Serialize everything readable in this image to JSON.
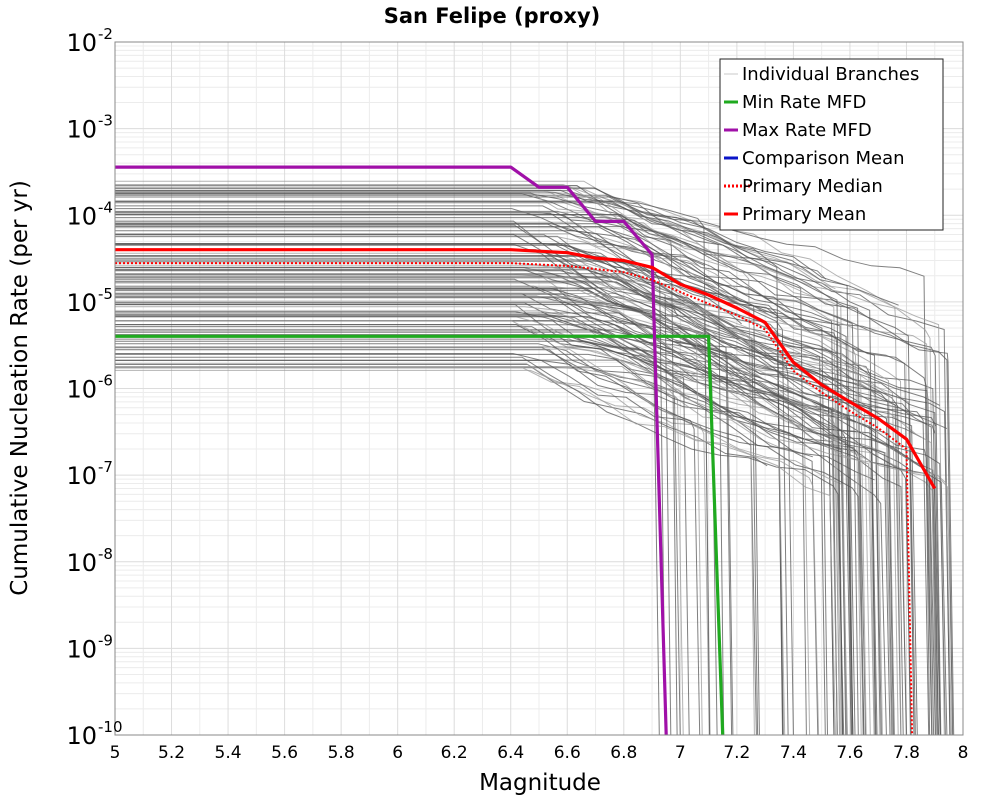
{
  "chart_data": {
    "type": "line",
    "title": "San Felipe (proxy)",
    "xlabel": "Magnitude",
    "ylabel": "Cumulative Nucleation Rate (per yr)",
    "xlim": [
      5,
      8
    ],
    "ylim_log10": [
      -10,
      -2
    ],
    "yscale": "log",
    "grid": true,
    "x_ticks": [
      "5",
      "5.2",
      "5.4",
      "5.6",
      "5.8",
      "6",
      "6.2",
      "6.4",
      "6.6",
      "6.8",
      "7",
      "7.2",
      "7.4",
      "7.6",
      "7.8",
      "8"
    ],
    "y_ticks": [
      {
        "base": "10",
        "exp": "-2"
      },
      {
        "base": "10",
        "exp": "-3"
      },
      {
        "base": "10",
        "exp": "-4"
      },
      {
        "base": "10",
        "exp": "-5"
      },
      {
        "base": "10",
        "exp": "-6"
      },
      {
        "base": "10",
        "exp": "-7"
      },
      {
        "base": "10",
        "exp": "-8"
      },
      {
        "base": "10",
        "exp": "-9"
      },
      {
        "base": "10",
        "exp": "-10"
      }
    ],
    "legend_position": "top-right",
    "legend": [
      {
        "label": "Individual Branches",
        "color": "#c8c8c8",
        "style": "solid"
      },
      {
        "label": "Min Rate MFD",
        "color": "#1faa1f",
        "style": "solid"
      },
      {
        "label": "Max Rate MFD",
        "color": "#a010a8",
        "style": "solid"
      },
      {
        "label": "Comparison Mean",
        "color": "#0a14c8",
        "style": "solid"
      },
      {
        "label": " Primary Median",
        "color": "#ff0000",
        "style": "dotted"
      },
      {
        "label": "Primary Mean",
        "color": "#ff0000",
        "style": "solid"
      }
    ],
    "branch_band": {
      "color": "#4d4d4d",
      "plateau_rate_range": [
        1.5e-06,
        0.00025
      ],
      "plateau_end_magnitude_range": [
        6.4,
        6.8
      ],
      "max_magnitude_range": [
        6.9,
        7.95
      ],
      "approx_count": 140
    },
    "series": [
      {
        "name": "Min Rate MFD",
        "color": "#1faa1f",
        "points": [
          [
            5.0,
            4e-06
          ],
          [
            7.1,
            4e-06
          ],
          [
            7.15,
            1e-10
          ]
        ]
      },
      {
        "name": "Max Rate MFD",
        "color": "#a010a8",
        "points": [
          [
            5.0,
            0.00036
          ],
          [
            6.4,
            0.00036
          ],
          [
            6.5,
            0.00021
          ],
          [
            6.6,
            0.00021
          ],
          [
            6.7,
            8.5e-05
          ],
          [
            6.8,
            8.5e-05
          ],
          [
            6.9,
            3.5e-05
          ],
          [
            6.95,
            1e-10
          ]
        ]
      },
      {
        "name": "Primary Median",
        "color": "#ff0000",
        "style": "dotted",
        "points": [
          [
            5.0,
            2.8e-05
          ],
          [
            6.4,
            2.8e-05
          ],
          [
            6.6,
            2.6e-05
          ],
          [
            6.8,
            2.2e-05
          ],
          [
            6.9,
            1.8e-05
          ],
          [
            7.0,
            1.3e-05
          ],
          [
            7.1,
            9.5e-06
          ],
          [
            7.2,
            7e-06
          ],
          [
            7.3,
            4.8e-06
          ],
          [
            7.4,
            1.6e-06
          ],
          [
            7.5,
            9e-07
          ],
          [
            7.6,
            5.5e-07
          ],
          [
            7.7,
            3.5e-07
          ],
          [
            7.8,
            2e-07
          ],
          [
            7.82,
            1e-10
          ]
        ]
      },
      {
        "name": "Primary Mean",
        "color": "#ff0000",
        "points": [
          [
            5.0,
            4e-05
          ],
          [
            6.4,
            4e-05
          ],
          [
            6.6,
            3.7e-05
          ],
          [
            6.7,
            3.2e-05
          ],
          [
            6.8,
            3e-05
          ],
          [
            6.9,
            2.5e-05
          ],
          [
            7.0,
            1.6e-05
          ],
          [
            7.1,
            1.2e-05
          ],
          [
            7.2,
            8.5e-06
          ],
          [
            7.3,
            5.8e-06
          ],
          [
            7.4,
            2e-06
          ],
          [
            7.5,
            1.1e-06
          ],
          [
            7.6,
            7e-07
          ],
          [
            7.7,
            4.5e-07
          ],
          [
            7.8,
            2.6e-07
          ],
          [
            7.9,
            7e-08
          ]
        ]
      }
    ]
  }
}
